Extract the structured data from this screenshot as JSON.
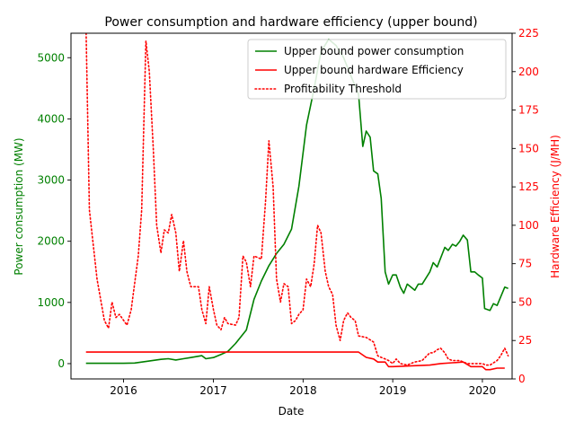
{
  "chart_data": {
    "type": "line",
    "title": "Power consumption and hardware efficiency (upper bound)",
    "xlabel": "Date",
    "ylabel_left": "Power consumption (MW)",
    "ylabel_right": "Hardware Efficiency (J/MH)",
    "left_axis_color": "#008000",
    "right_axis_color": "#ff0000",
    "xlim": [
      "2015-06-01",
      "2020-05-01"
    ],
    "ylim_left": [
      -250,
      5400
    ],
    "ylim_right": [
      0,
      225
    ],
    "x_ticks": [
      {
        "date": "2016-01-01",
        "label": "2016"
      },
      {
        "date": "2017-01-01",
        "label": "2017"
      },
      {
        "date": "2018-01-01",
        "label": "2018"
      },
      {
        "date": "2019-01-01",
        "label": "2019"
      },
      {
        "date": "2020-01-01",
        "label": "2020"
      }
    ],
    "y_ticks_left": [
      0,
      1000,
      2000,
      3000,
      4000,
      5000
    ],
    "y_ticks_right": [
      0,
      25,
      50,
      75,
      100,
      125,
      150,
      175,
      200,
      225
    ],
    "grid": false,
    "legend_position": "top-right",
    "legend": [
      {
        "label": "Upper bound power consumption",
        "color": "#008000",
        "style": "solid"
      },
      {
        "label": "Upper bound hardware Efficiency",
        "color": "#ff0000",
        "style": "solid"
      },
      {
        "label": "Profitability Threshold",
        "color": "#ff0000",
        "style": "dotted"
      }
    ],
    "series": [
      {
        "name": "Upper bound power consumption",
        "axis": "left",
        "color": "#008000",
        "style": "solid",
        "points": [
          [
            "2015-08-01",
            5
          ],
          [
            "2015-10-01",
            5
          ],
          [
            "2015-12-01",
            5
          ],
          [
            "2016-01-01",
            5
          ],
          [
            "2016-02-15",
            10
          ],
          [
            "2016-04-01",
            35
          ],
          [
            "2016-06-01",
            70
          ],
          [
            "2016-07-01",
            80
          ],
          [
            "2016-08-01",
            60
          ],
          [
            "2016-09-01",
            80
          ],
          [
            "2016-10-01",
            100
          ],
          [
            "2016-11-15",
            130
          ],
          [
            "2016-12-01",
            80
          ],
          [
            "2017-01-01",
            100
          ],
          [
            "2017-02-01",
            150
          ],
          [
            "2017-03-01",
            200
          ],
          [
            "2017-04-01",
            330
          ],
          [
            "2017-05-15",
            550
          ],
          [
            "2017-06-15",
            1050
          ],
          [
            "2017-07-15",
            1350
          ],
          [
            "2017-08-15",
            1600
          ],
          [
            "2017-09-15",
            1800
          ],
          [
            "2017-10-15",
            1950
          ],
          [
            "2017-11-15",
            2200
          ],
          [
            "2017-12-15",
            2900
          ],
          [
            "2018-01-15",
            3900
          ],
          [
            "2018-02-15",
            4500
          ],
          [
            "2018-03-15",
            5100
          ],
          [
            "2018-04-15",
            5300
          ],
          [
            "2018-05-15",
            5200
          ],
          [
            "2018-06-15",
            5000
          ],
          [
            "2018-07-15",
            4700
          ],
          [
            "2018-08-15",
            4400
          ],
          [
            "2018-09-01",
            3550
          ],
          [
            "2018-09-15",
            3800
          ],
          [
            "2018-10-01",
            3700
          ],
          [
            "2018-10-15",
            3150
          ],
          [
            "2018-11-01",
            3100
          ],
          [
            "2018-11-15",
            2700
          ],
          [
            "2018-12-01",
            1500
          ],
          [
            "2018-12-15",
            1300
          ],
          [
            "2019-01-01",
            1450
          ],
          [
            "2019-01-15",
            1450
          ],
          [
            "2019-02-01",
            1250
          ],
          [
            "2019-02-15",
            1150
          ],
          [
            "2019-03-01",
            1300
          ],
          [
            "2019-04-01",
            1200
          ],
          [
            "2019-04-15",
            1300
          ],
          [
            "2019-05-01",
            1300
          ],
          [
            "2019-06-01",
            1500
          ],
          [
            "2019-06-15",
            1650
          ],
          [
            "2019-07-01",
            1580
          ],
          [
            "2019-08-01",
            1900
          ],
          [
            "2019-08-15",
            1850
          ],
          [
            "2019-09-01",
            1950
          ],
          [
            "2019-09-15",
            1920
          ],
          [
            "2019-10-01",
            2000
          ],
          [
            "2019-10-15",
            2100
          ],
          [
            "2019-11-01",
            2020
          ],
          [
            "2019-11-15",
            1500
          ],
          [
            "2019-12-01",
            1500
          ],
          [
            "2019-12-15",
            1450
          ],
          [
            "2020-01-01",
            1400
          ],
          [
            "2020-01-10",
            900
          ],
          [
            "2020-02-01",
            870
          ],
          [
            "2020-02-15",
            980
          ],
          [
            "2020-03-01",
            950
          ],
          [
            "2020-04-01",
            1250
          ],
          [
            "2020-04-15",
            1230
          ]
        ]
      },
      {
        "name": "Upper bound hardware Efficiency",
        "axis": "right",
        "color": "#ff0000",
        "style": "solid",
        "points": [
          [
            "2015-08-01",
            17.5
          ],
          [
            "2018-08-15",
            17.5
          ],
          [
            "2018-09-15",
            14
          ],
          [
            "2018-10-15",
            13
          ],
          [
            "2018-11-01",
            11
          ],
          [
            "2018-12-01",
            11
          ],
          [
            "2018-12-15",
            8
          ],
          [
            "2019-01-01",
            8
          ],
          [
            "2019-06-01",
            9
          ],
          [
            "2019-07-15",
            10
          ],
          [
            "2019-09-01",
            10.5
          ],
          [
            "2019-10-15",
            11
          ],
          [
            "2019-11-15",
            8
          ],
          [
            "2020-01-01",
            8
          ],
          [
            "2020-01-15",
            6
          ],
          [
            "2020-02-01",
            6
          ],
          [
            "2020-03-01",
            7
          ],
          [
            "2020-04-01",
            7
          ]
        ]
      },
      {
        "name": "Profitability Threshold",
        "axis": "right",
        "color": "#ff0000",
        "style": "dotted",
        "points": [
          [
            "2015-08-01",
            230
          ],
          [
            "2015-08-15",
            110
          ],
          [
            "2015-09-15",
            65
          ],
          [
            "2015-10-15",
            38
          ],
          [
            "2015-11-01",
            33
          ],
          [
            "2015-11-15",
            50
          ],
          [
            "2015-12-01",
            40
          ],
          [
            "2015-12-15",
            42
          ],
          [
            "2016-01-15",
            35
          ],
          [
            "2016-02-01",
            45
          ],
          [
            "2016-03-01",
            80
          ],
          [
            "2016-03-15",
            110
          ],
          [
            "2016-04-01",
            220
          ],
          [
            "2016-04-15",
            200
          ],
          [
            "2016-05-01",
            150
          ],
          [
            "2016-05-15",
            100
          ],
          [
            "2016-06-01",
            82
          ],
          [
            "2016-06-15",
            97
          ],
          [
            "2016-07-01",
            95
          ],
          [
            "2016-07-15",
            107
          ],
          [
            "2016-08-01",
            95
          ],
          [
            "2016-08-15",
            70
          ],
          [
            "2016-09-01",
            90
          ],
          [
            "2016-09-15",
            70
          ],
          [
            "2016-10-01",
            60
          ],
          [
            "2016-11-01",
            60
          ],
          [
            "2016-11-15",
            45
          ],
          [
            "2016-12-01",
            36
          ],
          [
            "2016-12-15",
            60
          ],
          [
            "2017-01-01",
            45
          ],
          [
            "2017-01-15",
            35
          ],
          [
            "2017-02-01",
            32
          ],
          [
            "2017-02-15",
            40
          ],
          [
            "2017-03-01",
            36
          ],
          [
            "2017-04-01",
            35
          ],
          [
            "2017-04-15",
            40
          ],
          [
            "2017-05-01",
            80
          ],
          [
            "2017-05-15",
            76
          ],
          [
            "2017-06-01",
            60
          ],
          [
            "2017-06-15",
            80
          ],
          [
            "2017-07-15",
            78
          ],
          [
            "2017-08-01",
            115
          ],
          [
            "2017-08-15",
            155
          ],
          [
            "2017-09-01",
            125
          ],
          [
            "2017-09-15",
            65
          ],
          [
            "2017-10-01",
            50
          ],
          [
            "2017-10-15",
            62
          ],
          [
            "2017-11-01",
            60
          ],
          [
            "2017-11-15",
            36
          ],
          [
            "2017-12-01",
            38
          ],
          [
            "2017-12-15",
            42
          ],
          [
            "2018-01-01",
            45
          ],
          [
            "2018-01-15",
            65
          ],
          [
            "2018-02-01",
            60
          ],
          [
            "2018-02-15",
            75
          ],
          [
            "2018-03-01",
            100
          ],
          [
            "2018-03-15",
            95
          ],
          [
            "2018-04-01",
            70
          ],
          [
            "2018-04-15",
            60
          ],
          [
            "2018-05-01",
            55
          ],
          [
            "2018-05-15",
            35
          ],
          [
            "2018-06-01",
            25
          ],
          [
            "2018-06-15",
            38
          ],
          [
            "2018-07-01",
            43
          ],
          [
            "2018-07-15",
            40
          ],
          [
            "2018-08-01",
            38
          ],
          [
            "2018-08-15",
            28
          ],
          [
            "2018-09-15",
            27
          ],
          [
            "2018-10-15",
            24
          ],
          [
            "2018-11-01",
            15
          ],
          [
            "2018-11-15",
            14
          ],
          [
            "2018-12-01",
            13
          ],
          [
            "2018-12-15",
            12
          ],
          [
            "2019-01-01",
            10
          ],
          [
            "2019-01-15",
            13
          ],
          [
            "2019-02-01",
            10
          ],
          [
            "2019-03-01",
            9
          ],
          [
            "2019-03-15",
            10
          ],
          [
            "2019-04-01",
            11
          ],
          [
            "2019-05-01",
            12
          ],
          [
            "2019-06-01",
            17
          ],
          [
            "2019-06-15",
            17
          ],
          [
            "2019-07-01",
            19
          ],
          [
            "2019-07-15",
            20
          ],
          [
            "2019-08-01",
            17
          ],
          [
            "2019-08-15",
            13
          ],
          [
            "2019-09-01",
            12
          ],
          [
            "2019-10-01",
            12
          ],
          [
            "2019-10-15",
            11
          ],
          [
            "2019-11-01",
            10
          ],
          [
            "2019-12-01",
            10
          ],
          [
            "2020-01-01",
            10
          ],
          [
            "2020-01-15",
            9
          ],
          [
            "2020-02-01",
            9
          ],
          [
            "2020-03-01",
            12
          ],
          [
            "2020-03-15",
            15
          ],
          [
            "2020-04-01",
            20
          ],
          [
            "2020-04-15",
            15
          ]
        ]
      }
    ]
  }
}
